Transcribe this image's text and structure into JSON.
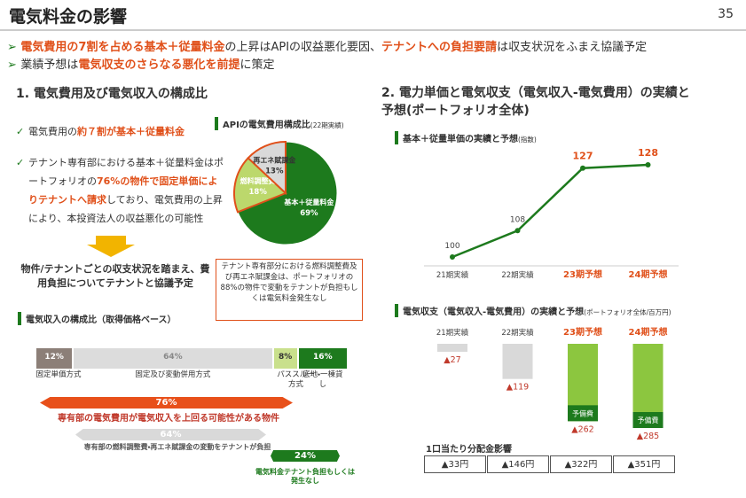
{
  "header": {
    "title": "電気料金の影響",
    "page": "35"
  },
  "bullets": [
    [
      {
        "text": "電気費用の7割を占める基本＋従量料金",
        "color": "#e0501a"
      },
      {
        "text": "の上昇はAPIの収益悪化要因、"
      },
      {
        "text": "テナントへの負担要請",
        "color": "#e0501a"
      },
      {
        "text": "は収支状況をふまえ協議予定"
      }
    ],
    [
      {
        "text": "業績予想は"
      },
      {
        "text": "電気収支のさらなる悪化を前提",
        "color": "#e0501a"
      },
      {
        "text": "に策定"
      }
    ]
  ],
  "left": {
    "heading": "1.  電気費用及び電気収入の構成比",
    "checks": [
      [
        {
          "text": "電気費用の"
        },
        {
          "text": "約７割が基本＋従量料金",
          "color": "#e0501a"
        }
      ],
      [
        {
          "text": "テナント専有部における基本＋従量料金はポートフォリオの"
        },
        {
          "text": "76%の物件で固定単価によりテナントへ請求",
          "color": "#e0501a"
        },
        {
          "text": "しており、電気費用の上昇により、本投資法人の収益悪化の可能性"
        }
      ]
    ],
    "conclusion": "物件/テナントごとの収支状況を踏まえ、費用負担についてテナントと協議予定",
    "callout": "テナント専有部分における燃料調整費及び再エネ賦課金は、ポートフォリオの88%の物件で変動をテナントが負担もしくは電気料金発生なし",
    "notes": [
      {
        "value_text": "76%",
        "text": "専有部の電気費用が電気収入を上回る可能性がある物件"
      },
      {
        "value_text": "64%",
        "text": "専有部の燃料調整費・再エネ賦課金の変動をテナントが負担"
      },
      {
        "value_text": "24%",
        "text": "電気料金テナント負担もしくは発生なし"
      }
    ]
  },
  "right": {
    "heading": "2.  電力単価と電気収支（電気収入-電気費用）の実績と予想(ポートフォリオ全体)",
    "table_title": "1口当たり分配金影響",
    "table": [
      "▲33円",
      "▲146円",
      "▲322円",
      "▲351円"
    ]
  },
  "chart_data": [
    {
      "type": "pie",
      "title": "APIの電気費用構成比",
      "subtitle": "(22期実績)",
      "categories": [
        "基本＋従量料金",
        "燃料調整費",
        "再エネ賦課金"
      ],
      "values": [
        69,
        18,
        13
      ],
      "value_labels": [
        "69%",
        "18%",
        "13%"
      ],
      "colors": [
        "#1d7a1d",
        "#bcd86c",
        "#d9d9d9"
      ]
    },
    {
      "type": "stacked_bar",
      "title": "電気収入の構成比（取得価格ベース）",
      "series": [
        {
          "name": "固定単価方式",
          "color": "#8c7f78",
          "values": [
            12
          ],
          "value_labels": [
            "12%"
          ]
        },
        {
          "name": "固定及び変動併用方式",
          "color": "#dcdcdc",
          "values": [
            64
          ],
          "value_labels": [
            "64%"
          ]
        },
        {
          "name": "パススルー方式",
          "color": "#c9e08c",
          "values": [
            8
          ],
          "value_labels": [
            "8%"
          ]
        },
        {
          "name": "底地・一棟貸し",
          "color": "#1d7a1d",
          "values": [
            16
          ],
          "value_labels": [
            "16%"
          ]
        }
      ]
    },
    {
      "type": "line",
      "title": "基本＋従量単価の実績と予想",
      "subtitle": "(指数)",
      "categories": [
        "21期実績",
        "22期実績",
        "23期予想",
        "24期予想"
      ],
      "values": [
        100,
        108,
        127,
        128
      ],
      "color": "#1d7a1d",
      "category_colors": [
        "#444444",
        "#444444",
        "#e0501a",
        "#e0501a"
      ]
    },
    {
      "type": "bar",
      "title": "電気収支（電気収入-電気費用）の実績と予想",
      "subtitle": "(ポートフォリオ全体/百万円)",
      "categories": [
        "21期実績",
        "22期実績",
        "23期予想",
        "24期予想"
      ],
      "values": [
        -27,
        -119,
        -262,
        -285
      ],
      "value_labels": [
        "▲27",
        "▲119",
        "▲262",
        "▲285"
      ],
      "colors": [
        "#d9d9d9",
        "#d9d9d9",
        "#8cc63f",
        "#8cc63f"
      ],
      "category_colors": [
        "#444444",
        "#444444",
        "#e0501a",
        "#e0501a"
      ],
      "bar_notes": [
        null,
        null,
        "予備費",
        "予備費"
      ]
    }
  ]
}
